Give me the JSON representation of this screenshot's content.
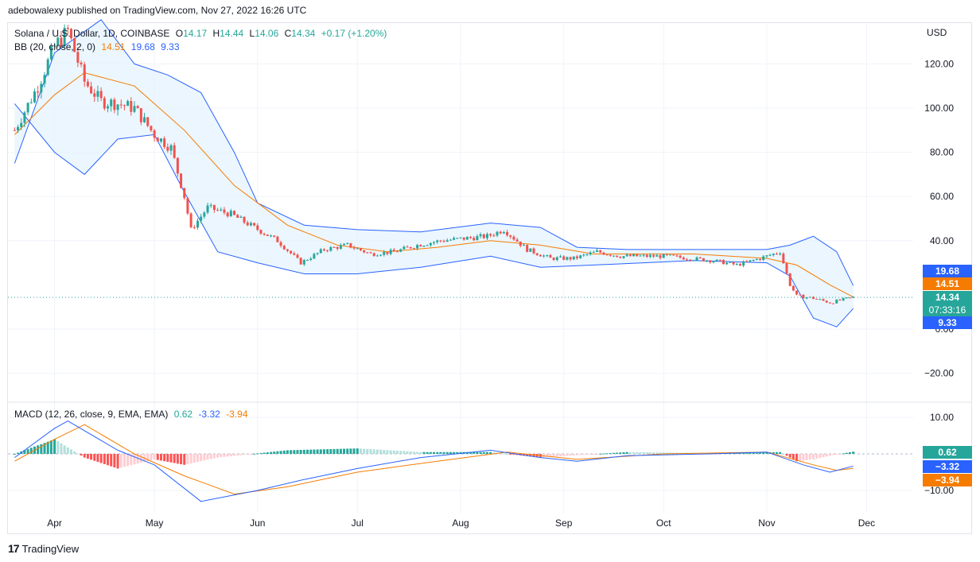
{
  "header": {
    "credit": "adebowalexy published on TradingView.com, Nov 27, 2022 16:26 UTC"
  },
  "legend_main": {
    "symbol": "Solana / U.S. Dollar, 1D, COINBASE",
    "open_label": "O",
    "open": "14.17",
    "high_label": "H",
    "high": "14.44",
    "low_label": "L",
    "low": "14.06",
    "close_label": "C",
    "close": "14.34",
    "change": "+0.17 (+1.20%)"
  },
  "legend_bb": {
    "label": "BB (20, close, 2, 0)",
    "basis": "14.51",
    "upper": "19.68",
    "lower": "9.33"
  },
  "legend_macd": {
    "label": "MACD (12, 26, close, 9, EMA, EMA)",
    "hist": "0.62",
    "macd": "-3.32",
    "signal": "-3.94"
  },
  "price_tags": {
    "upper": "19.68",
    "basis": "14.51",
    "close": "14.34",
    "countdown": "07:33:16",
    "lower": "9.33"
  },
  "macd_tags": {
    "hist": "0.62",
    "macd": "−3.32",
    "signal": "−3.94"
  },
  "footer": {
    "brand": "TradingView"
  },
  "colors": {
    "up": "#26a69a",
    "down": "#ef5350",
    "bb_band": "#2962ff",
    "bb_basis": "#f57c00",
    "bb_fill": "#e3f2fd",
    "macd_line": "#2962ff",
    "signal_line": "#f57c00",
    "hist_up_strong": "#26a69a",
    "hist_up_weak": "#b2dfdb",
    "hist_down_strong": "#ff5252",
    "hist_down_weak": "#ffcdd2"
  },
  "chart_data": [
    {
      "type": "candlestick",
      "title": "Solana / U.S. Dollar, 1D, COINBASE",
      "y_unit": "USD",
      "y_ticks": [
        120,
        100,
        80,
        60,
        40,
        0,
        -20
      ],
      "y_tick_labels": [
        "120.00",
        "100.00",
        "80.00",
        "60.00",
        "40.00",
        "0.00",
        "−20.00"
      ],
      "x_ticks": [
        "Apr",
        "May",
        "Jun",
        "Jul",
        "Aug",
        "Sep",
        "Oct",
        "Nov",
        "Dec"
      ],
      "close_series": [
        {
          "date": "2022-03-20",
          "value": 90
        },
        {
          "date": "2022-03-27",
          "value": 110
        },
        {
          "date": "2022-04-01",
          "value": 128
        },
        {
          "date": "2022-04-05",
          "value": 135
        },
        {
          "date": "2022-04-10",
          "value": 112
        },
        {
          "date": "2022-04-15",
          "value": 103
        },
        {
          "date": "2022-04-20",
          "value": 102
        },
        {
          "date": "2022-04-25",
          "value": 100
        },
        {
          "date": "2022-05-01",
          "value": 88
        },
        {
          "date": "2022-05-06",
          "value": 82
        },
        {
          "date": "2022-05-10",
          "value": 60
        },
        {
          "date": "2022-05-12",
          "value": 45
        },
        {
          "date": "2022-05-17",
          "value": 55
        },
        {
          "date": "2022-05-24",
          "value": 52
        },
        {
          "date": "2022-05-31",
          "value": 46
        },
        {
          "date": "2022-06-07",
          "value": 40
        },
        {
          "date": "2022-06-14",
          "value": 30
        },
        {
          "date": "2022-06-21",
          "value": 36
        },
        {
          "date": "2022-06-28",
          "value": 38
        },
        {
          "date": "2022-07-05",
          "value": 34
        },
        {
          "date": "2022-07-12",
          "value": 35
        },
        {
          "date": "2022-07-19",
          "value": 38
        },
        {
          "date": "2022-07-26",
          "value": 40
        },
        {
          "date": "2022-08-02",
          "value": 41
        },
        {
          "date": "2022-08-09",
          "value": 42
        },
        {
          "date": "2022-08-14",
          "value": 45
        },
        {
          "date": "2022-08-21",
          "value": 36
        },
        {
          "date": "2022-08-28",
          "value": 32
        },
        {
          "date": "2022-09-04",
          "value": 32
        },
        {
          "date": "2022-09-11",
          "value": 35
        },
        {
          "date": "2022-09-18",
          "value": 33
        },
        {
          "date": "2022-09-25",
          "value": 33
        },
        {
          "date": "2022-10-02",
          "value": 33
        },
        {
          "date": "2022-10-09",
          "value": 32
        },
        {
          "date": "2022-10-16",
          "value": 31
        },
        {
          "date": "2022-10-23",
          "value": 29
        },
        {
          "date": "2022-10-30",
          "value": 32
        },
        {
          "date": "2022-11-05",
          "value": 35
        },
        {
          "date": "2022-11-08",
          "value": 20
        },
        {
          "date": "2022-11-10",
          "value": 15
        },
        {
          "date": "2022-11-15",
          "value": 14
        },
        {
          "date": "2022-11-20",
          "value": 12
        },
        {
          "date": "2022-11-27",
          "value": 14.34
        }
      ],
      "bb_upper": [
        {
          "date": "2022-03-20",
          "value": 75
        },
        {
          "date": "2022-04-01",
          "value": 125
        },
        {
          "date": "2022-04-15",
          "value": 140
        },
        {
          "date": "2022-04-25",
          "value": 120
        },
        {
          "date": "2022-05-05",
          "value": 115
        },
        {
          "date": "2022-05-15",
          "value": 107
        },
        {
          "date": "2022-05-25",
          "value": 80
        },
        {
          "date": "2022-06-01",
          "value": 57
        },
        {
          "date": "2022-06-15",
          "value": 47
        },
        {
          "date": "2022-07-01",
          "value": 45
        },
        {
          "date": "2022-07-20",
          "value": 44
        },
        {
          "date": "2022-08-10",
          "value": 48
        },
        {
          "date": "2022-08-25",
          "value": 46
        },
        {
          "date": "2022-09-05",
          "value": 37
        },
        {
          "date": "2022-09-20",
          "value": 36
        },
        {
          "date": "2022-10-15",
          "value": 36
        },
        {
          "date": "2022-11-01",
          "value": 36
        },
        {
          "date": "2022-11-08",
          "value": 38
        },
        {
          "date": "2022-11-15",
          "value": 42
        },
        {
          "date": "2022-11-22",
          "value": 35
        },
        {
          "date": "2022-11-27",
          "value": 19.68
        }
      ],
      "bb_basis": [
        {
          "date": "2022-03-20",
          "value": 88
        },
        {
          "date": "2022-04-01",
          "value": 106
        },
        {
          "date": "2022-04-10",
          "value": 116
        },
        {
          "date": "2022-04-25",
          "value": 110
        },
        {
          "date": "2022-05-10",
          "value": 90
        },
        {
          "date": "2022-05-25",
          "value": 65
        },
        {
          "date": "2022-06-10",
          "value": 47
        },
        {
          "date": "2022-06-25",
          "value": 38
        },
        {
          "date": "2022-07-10",
          "value": 35
        },
        {
          "date": "2022-07-25",
          "value": 37
        },
        {
          "date": "2022-08-10",
          "value": 40
        },
        {
          "date": "2022-08-25",
          "value": 38
        },
        {
          "date": "2022-09-10",
          "value": 34
        },
        {
          "date": "2022-10-10",
          "value": 34
        },
        {
          "date": "2022-11-01",
          "value": 32
        },
        {
          "date": "2022-11-10",
          "value": 29
        },
        {
          "date": "2022-11-20",
          "value": 20
        },
        {
          "date": "2022-11-27",
          "value": 14.51
        }
      ],
      "bb_lower": [
        {
          "date": "2022-03-20",
          "value": 102
        },
        {
          "date": "2022-04-01",
          "value": 80
        },
        {
          "date": "2022-04-10",
          "value": 70
        },
        {
          "date": "2022-04-20",
          "value": 86
        },
        {
          "date": "2022-05-01",
          "value": 88
        },
        {
          "date": "2022-05-10",
          "value": 62
        },
        {
          "date": "2022-05-20",
          "value": 35
        },
        {
          "date": "2022-06-01",
          "value": 30
        },
        {
          "date": "2022-06-15",
          "value": 25
        },
        {
          "date": "2022-07-01",
          "value": 25
        },
        {
          "date": "2022-07-20",
          "value": 28
        },
        {
          "date": "2022-08-10",
          "value": 33
        },
        {
          "date": "2022-08-25",
          "value": 28
        },
        {
          "date": "2022-09-10",
          "value": 29
        },
        {
          "date": "2022-10-10",
          "value": 31
        },
        {
          "date": "2022-11-01",
          "value": 30
        },
        {
          "date": "2022-11-08",
          "value": 24
        },
        {
          "date": "2022-11-15",
          "value": 5
        },
        {
          "date": "2022-11-22",
          "value": 1
        },
        {
          "date": "2022-11-27",
          "value": 9.33
        }
      ]
    },
    {
      "type": "line",
      "title": "MACD (12, 26, close, 9, EMA, EMA)",
      "y_ticks": [
        10,
        -10
      ],
      "y_tick_labels": [
        "10.00",
        "−10.00"
      ],
      "series": [
        {
          "name": "MACD",
          "values": [
            {
              "date": "2022-03-20",
              "value": -1
            },
            {
              "date": "2022-04-01",
              "value": 7
            },
            {
              "date": "2022-04-05",
              "value": 9
            },
            {
              "date": "2022-04-20",
              "value": 1
            },
            {
              "date": "2022-05-01",
              "value": -3
            },
            {
              "date": "2022-05-15",
              "value": -13
            },
            {
              "date": "2022-06-01",
              "value": -10
            },
            {
              "date": "2022-06-15",
              "value": -7
            },
            {
              "date": "2022-07-01",
              "value": -4
            },
            {
              "date": "2022-07-20",
              "value": -1
            },
            {
              "date": "2022-08-10",
              "value": 1
            },
            {
              "date": "2022-08-25",
              "value": -1
            },
            {
              "date": "2022-09-05",
              "value": -2
            },
            {
              "date": "2022-09-20",
              "value": -0.5
            },
            {
              "date": "2022-10-15",
              "value": 0
            },
            {
              "date": "2022-11-01",
              "value": 0.5
            },
            {
              "date": "2022-11-12",
              "value": -3
            },
            {
              "date": "2022-11-20",
              "value": -5
            },
            {
              "date": "2022-11-27",
              "value": -3.32
            }
          ]
        },
        {
          "name": "Signal",
          "values": [
            {
              "date": "2022-03-20",
              "value": -2
            },
            {
              "date": "2022-04-01",
              "value": 4
            },
            {
              "date": "2022-04-10",
              "value": 8
            },
            {
              "date": "2022-04-25",
              "value": 0
            },
            {
              "date": "2022-05-10",
              "value": -6
            },
            {
              "date": "2022-05-25",
              "value": -11
            },
            {
              "date": "2022-06-10",
              "value": -9
            },
            {
              "date": "2022-07-01",
              "value": -5
            },
            {
              "date": "2022-07-25",
              "value": -2
            },
            {
              "date": "2022-08-15",
              "value": 0.5
            },
            {
              "date": "2022-09-05",
              "value": -1.5
            },
            {
              "date": "2022-10-01",
              "value": 0
            },
            {
              "date": "2022-11-01",
              "value": 0.5
            },
            {
              "date": "2022-11-15",
              "value": -3
            },
            {
              "date": "2022-11-22",
              "value": -4.5
            },
            {
              "date": "2022-11-27",
              "value": -3.94
            }
          ]
        },
        {
          "name": "Histogram",
          "values": [
            {
              "date": "2022-04-01",
              "value": 4
            },
            {
              "date": "2022-04-10",
              "value": -1
            },
            {
              "date": "2022-04-20",
              "value": -4
            },
            {
              "date": "2022-05-01",
              "value": -1.5
            },
            {
              "date": "2022-05-10",
              "value": -3
            },
            {
              "date": "2022-05-20",
              "value": -1
            },
            {
              "date": "2022-06-10",
              "value": 1
            },
            {
              "date": "2022-07-01",
              "value": 1.5
            },
            {
              "date": "2022-07-20",
              "value": 0.5
            },
            {
              "date": "2022-08-10",
              "value": 0.5
            },
            {
              "date": "2022-08-25",
              "value": -1
            },
            {
              "date": "2022-09-20",
              "value": 0.5
            },
            {
              "date": "2022-10-15",
              "value": 0.2
            },
            {
              "date": "2022-11-05",
              "value": 0.5
            },
            {
              "date": "2022-11-10",
              "value": -2
            },
            {
              "date": "2022-11-15",
              "value": -1.5
            },
            {
              "date": "2022-11-20",
              "value": -0.5
            },
            {
              "date": "2022-11-27",
              "value": 0.62
            }
          ]
        }
      ]
    }
  ]
}
